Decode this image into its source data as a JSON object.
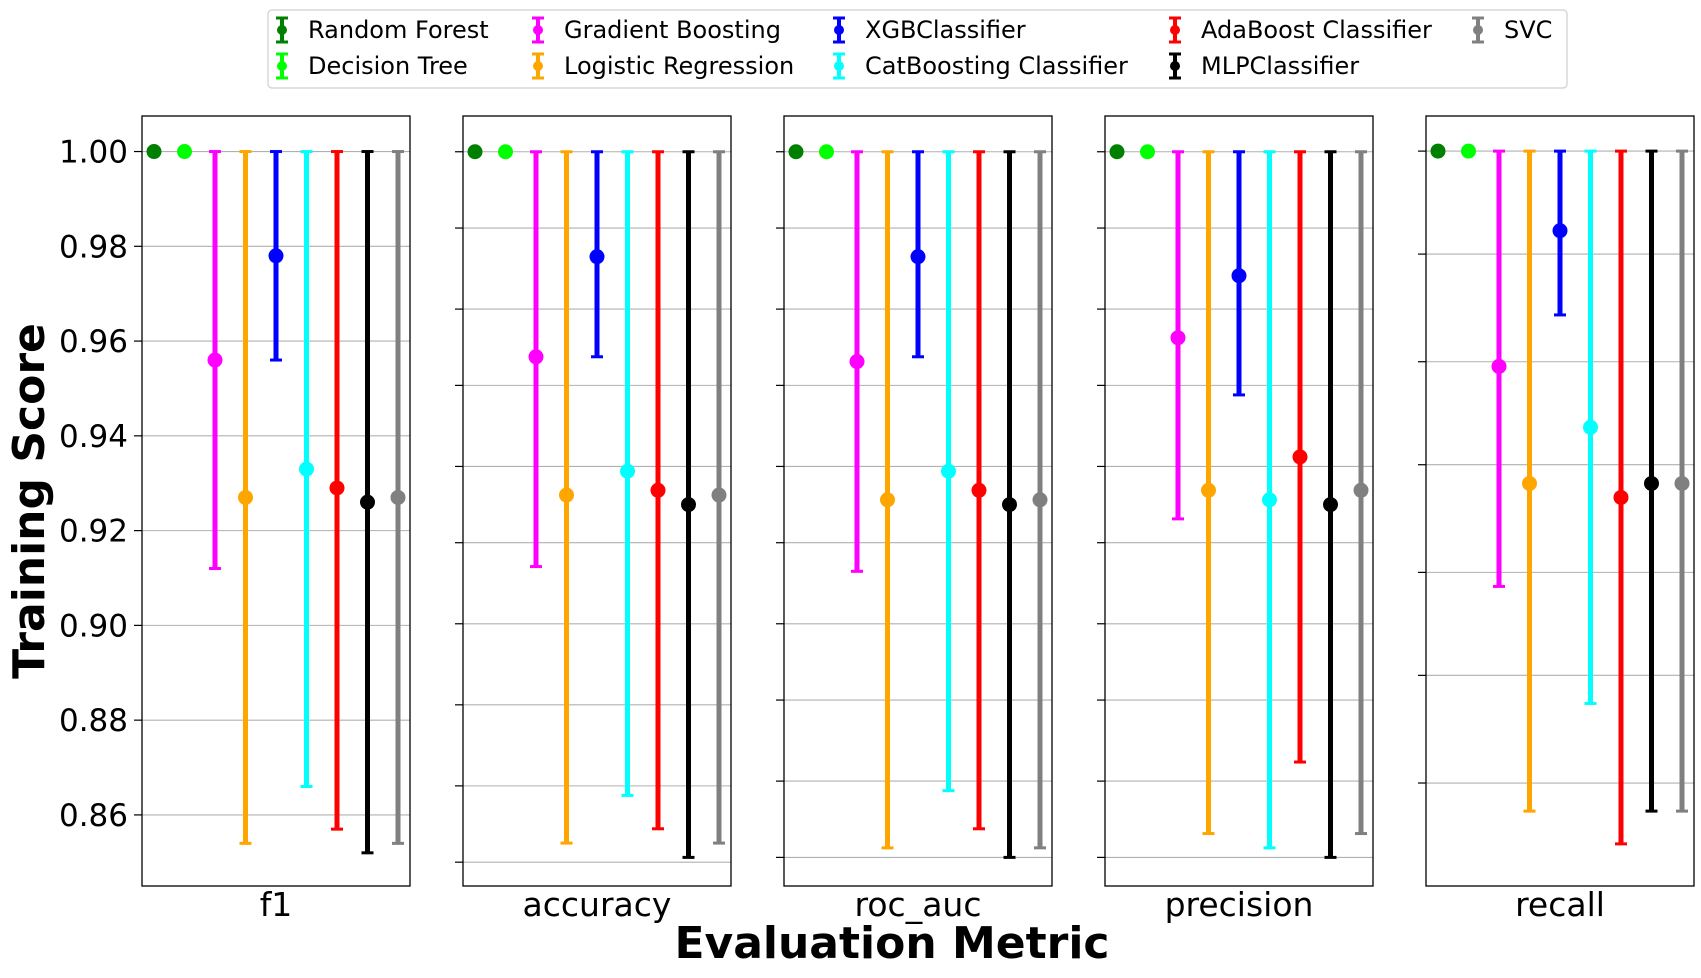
{
  "chart_data": {
    "type": "scatter",
    "subtype": "point-with-error-bars",
    "xlabel": "Evaluation Metric",
    "ylabel": "Training Score",
    "ylim": [
      0.845,
      1.0075
    ],
    "y_ticks": [
      "1.00",
      "0.98",
      "0.96",
      "0.94",
      "0.92",
      "0.90",
      "0.88",
      "0.86"
    ],
    "grid": "horizontal",
    "legend_position": "top",
    "legend_columns": 5,
    "models": [
      {
        "name": "Random Forest",
        "color": "#008000"
      },
      {
        "name": "Decision Tree",
        "color": "#00ff00"
      },
      {
        "name": "Gradient Boosting",
        "color": "#ff00ff"
      },
      {
        "name": "Logistic Regression",
        "color": "#ffa500"
      },
      {
        "name": "XGBClassifier",
        "color": "#0000ff"
      },
      {
        "name": "CatBoosting Classifier",
        "color": "#00ffff"
      },
      {
        "name": "AdaBoost Classifier",
        "color": "#ff0000"
      },
      {
        "name": "MLPClassifier",
        "color": "#000000"
      },
      {
        "name": "SVC",
        "color": "#808080"
      }
    ],
    "panels": [
      {
        "metric": "f1",
        "ylim": [
          0.845,
          1.0075
        ],
        "show_tick_labels": true,
        "gridlines": [
          0.86,
          0.88,
          0.9,
          0.92,
          0.94,
          0.96,
          0.98,
          1.0
        ],
        "points": [
          {
            "mean": 1.0,
            "low": 1.0,
            "high": 1.0
          },
          {
            "mean": 1.0,
            "low": 1.0,
            "high": 1.0
          },
          {
            "mean": 0.956,
            "low": 0.912,
            "high": 1.0
          },
          {
            "mean": 0.927,
            "low": 0.854,
            "high": 1.0
          },
          {
            "mean": 0.978,
            "low": 0.956,
            "high": 1.0
          },
          {
            "mean": 0.933,
            "low": 0.866,
            "high": 1.0
          },
          {
            "mean": 0.929,
            "low": 0.857,
            "high": 1.0
          },
          {
            "mean": 0.926,
            "low": 0.852,
            "high": 1.0
          },
          {
            "mean": 0.927,
            "low": 0.854,
            "high": 1.0
          }
        ]
      },
      {
        "metric": "accuracy",
        "ylim": [
          0.846,
          1.0075
        ],
        "show_tick_labels": false,
        "gridlines": [
          0.851,
          0.867,
          0.884,
          0.901,
          0.918,
          0.934,
          0.951,
          0.967,
          0.984,
          1.0
        ],
        "points": [
          {
            "mean": 1.0,
            "low": 1.0,
            "high": 1.0
          },
          {
            "mean": 1.0,
            "low": 1.0,
            "high": 1.0
          },
          {
            "mean": 0.957,
            "low": 0.913,
            "high": 1.0
          },
          {
            "mean": 0.928,
            "low": 0.855,
            "high": 1.0
          },
          {
            "mean": 0.978,
            "low": 0.957,
            "high": 1.0
          },
          {
            "mean": 0.933,
            "low": 0.865,
            "high": 1.0
          },
          {
            "mean": 0.929,
            "low": 0.858,
            "high": 1.0
          },
          {
            "mean": 0.926,
            "low": 0.852,
            "high": 1.0
          },
          {
            "mean": 0.928,
            "low": 0.855,
            "high": 1.0
          }
        ]
      },
      {
        "metric": "roc_auc",
        "ylim": [
          0.846,
          1.0075
        ],
        "show_tick_labels": false,
        "gridlines": [
          0.852,
          0.868,
          0.885,
          0.901,
          0.918,
          0.934,
          0.951,
          0.967,
          0.984,
          1.0
        ],
        "points": [
          {
            "mean": 1.0,
            "low": 1.0,
            "high": 1.0
          },
          {
            "mean": 1.0,
            "low": 1.0,
            "high": 1.0
          },
          {
            "mean": 0.956,
            "low": 0.912,
            "high": 1.0
          },
          {
            "mean": 0.927,
            "low": 0.854,
            "high": 1.0
          },
          {
            "mean": 0.978,
            "low": 0.957,
            "high": 1.0
          },
          {
            "mean": 0.933,
            "low": 0.866,
            "high": 1.0
          },
          {
            "mean": 0.929,
            "low": 0.858,
            "high": 1.0
          },
          {
            "mean": 0.926,
            "low": 0.852,
            "high": 1.0
          },
          {
            "mean": 0.927,
            "low": 0.854,
            "high": 1.0
          }
        ]
      },
      {
        "metric": "precision",
        "ylim": [
          0.846,
          1.0075
        ],
        "show_tick_labels": false,
        "gridlines": [
          0.852,
          0.868,
          0.885,
          0.901,
          0.918,
          0.934,
          0.951,
          0.967,
          0.984,
          1.0
        ],
        "points": [
          {
            "mean": 1.0,
            "low": 1.0,
            "high": 1.0
          },
          {
            "mean": 1.0,
            "low": 1.0,
            "high": 1.0
          },
          {
            "mean": 0.961,
            "low": 0.923,
            "high": 1.0
          },
          {
            "mean": 0.929,
            "low": 0.857,
            "high": 1.0
          },
          {
            "mean": 0.974,
            "low": 0.949,
            "high": 1.0
          },
          {
            "mean": 0.927,
            "low": 0.854,
            "high": 1.0
          },
          {
            "mean": 0.936,
            "low": 0.872,
            "high": 1.0
          },
          {
            "mean": 0.926,
            "low": 0.852,
            "high": 1.0
          },
          {
            "mean": 0.929,
            "low": 0.857,
            "high": 1.0
          }
        ]
      },
      {
        "metric": "recall",
        "ylim": [
          0.843,
          1.0075
        ],
        "show_tick_labels": false,
        "gridlines": [
          0.865,
          0.888,
          0.91,
          0.933,
          0.955,
          0.978,
          1.0
        ],
        "points": [
          {
            "mean": 1.0,
            "low": 1.0,
            "high": 1.0
          },
          {
            "mean": 1.0,
            "low": 1.0,
            "high": 1.0
          },
          {
            "mean": 0.954,
            "low": 0.907,
            "high": 1.0
          },
          {
            "mean": 0.929,
            "low": 0.859,
            "high": 1.0
          },
          {
            "mean": 0.983,
            "low": 0.965,
            "high": 1.0
          },
          {
            "mean": 0.941,
            "low": 0.882,
            "high": 1.0
          },
          {
            "mean": 0.926,
            "low": 0.852,
            "high": 1.0
          },
          {
            "mean": 0.929,
            "low": 0.859,
            "high": 1.0
          },
          {
            "mean": 0.929,
            "low": 0.859,
            "high": 1.0
          }
        ]
      }
    ]
  }
}
